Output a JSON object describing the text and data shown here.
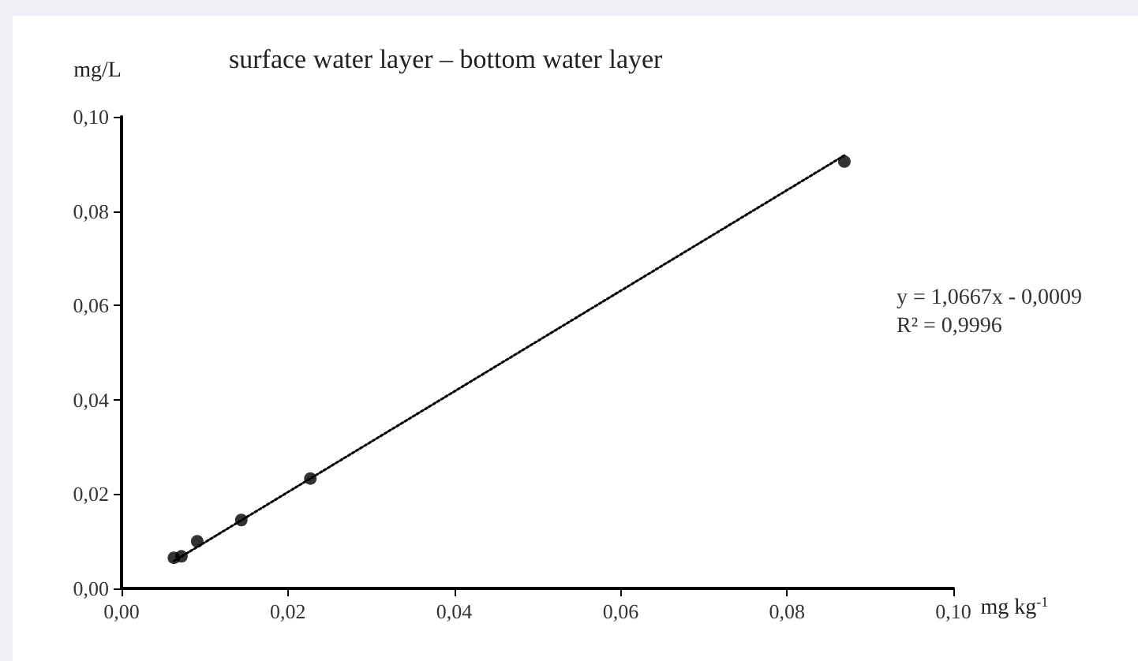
{
  "chart_data": {
    "type": "scatter",
    "title": "surface water layer – bottom water layer",
    "xlabel": "mg kg$^{-1}$",
    "ylabel": "mg/L",
    "x": [
      0.0063,
      0.0072,
      0.0091,
      0.0144,
      0.0227,
      0.0869
    ],
    "series": [
      {
        "color": "#000000",
        "marker": "circle",
        "values": [
          0.0065,
          0.0068,
          0.01,
          0.0145,
          0.0233,
          0.0905
        ]
      },
      {
        "type": "line",
        "color": "#000000",
        "line_style": "dotted",
        "marker": "none",
        "x": [
          0.0063,
          0.0869
        ],
        "values": [
          0.0058,
          0.0918
        ]
      }
    ],
    "xlim": [
      0,
      0.1
    ],
    "ylim": [
      0,
      0.1
    ],
    "xticks": [
      {
        "value": 0,
        "label": "0,00"
      },
      {
        "value": 0.02,
        "label": "0,02"
      },
      {
        "value": 0.04,
        "label": "0,04"
      },
      {
        "value": 0.06,
        "label": "0,06"
      },
      {
        "value": 0.08,
        "label": "0,08"
      },
      {
        "value": 0.1,
        "label": "0,10"
      }
    ],
    "yticks": [
      {
        "value": 0,
        "label": "0,00"
      },
      {
        "value": 0.02,
        "label": "0,02"
      },
      {
        "value": 0.04,
        "label": "0,04"
      },
      {
        "value": 0.06,
        "label": "0,06"
      },
      {
        "value": 0.08,
        "label": "0,08"
      },
      {
        "value": 0.1,
        "label": "0,10"
      }
    ],
    "annotations": [
      "y = 1,0667x - 0,0009",
      "R² = 0,9996"
    ],
    "grid": false
  }
}
